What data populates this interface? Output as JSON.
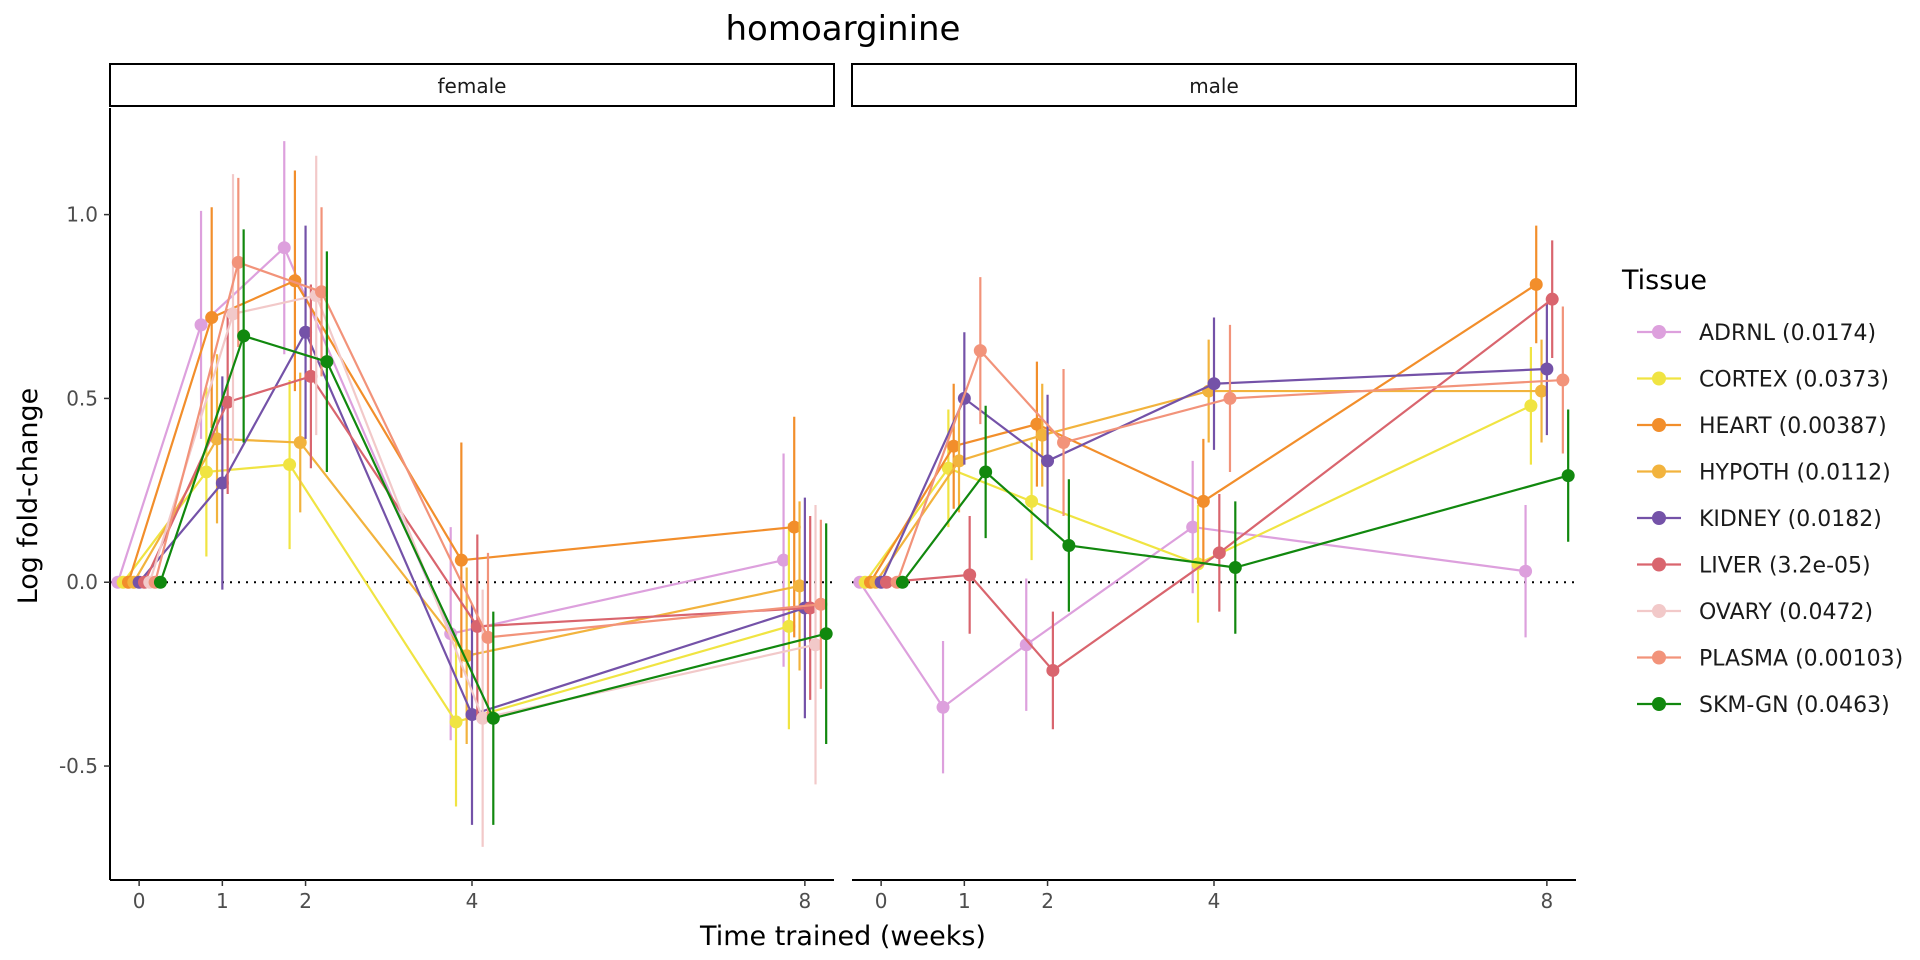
{
  "chart_data": {
    "type": "line",
    "title": "homoarginine",
    "xlabel": "Time trained (weeks)",
    "ylabel": "Log fold-change",
    "x_ticks": [
      0,
      1,
      2,
      4,
      8
    ],
    "y_ticks": [
      -0.5,
      0.0,
      0.5,
      1.0
    ],
    "y_tick_labels": [
      "-0.5",
      "0.0",
      "0.5",
      "1.0"
    ],
    "ylim": [
      -0.81,
      1.29
    ],
    "xlim": [
      -0.35,
      8.35
    ],
    "reference_line": 0,
    "legend_title": "Tissue",
    "legend_position": "right",
    "panels": [
      "female",
      "male"
    ],
    "series": [
      {
        "name": "ADRNL (0.0174)",
        "color": "#DDA0DD",
        "female": {
          "x": [
            0,
            1,
            2,
            4,
            8
          ],
          "y": [
            0,
            0.7,
            0.91,
            -0.14,
            0.06
          ],
          "lo": [
            0,
            0.39,
            0.62,
            -0.43,
            -0.23
          ],
          "hi": [
            0,
            1.01,
            1.2,
            0.15,
            0.35
          ]
        },
        "male": {
          "x": [
            0,
            1,
            2,
            4,
            8
          ],
          "y": [
            0,
            -0.34,
            -0.17,
            0.15,
            0.03
          ],
          "lo": [
            0,
            -0.52,
            -0.35,
            -0.03,
            -0.15
          ],
          "hi": [
            0,
            -0.16,
            0.01,
            0.33,
            0.21
          ]
        }
      },
      {
        "name": "CORTEX (0.0373)",
        "color": "#F0E442",
        "female": {
          "x": [
            0,
            1,
            2,
            4,
            8
          ],
          "y": [
            0,
            0.3,
            0.32,
            -0.38,
            -0.12
          ],
          "lo": [
            0,
            0.07,
            0.09,
            -0.61,
            -0.4
          ],
          "hi": [
            0,
            0.53,
            0.55,
            -0.15,
            0.16
          ]
        },
        "male": {
          "x": [
            0,
            1,
            2,
            4,
            8
          ],
          "y": [
            0,
            0.31,
            0.22,
            0.05,
            0.48
          ],
          "lo": [
            0,
            0.15,
            0.06,
            -0.11,
            0.32
          ],
          "hi": [
            0,
            0.47,
            0.38,
            0.21,
            0.64
          ]
        }
      },
      {
        "name": "HEART (0.00387)",
        "color": "#F28E2B",
        "female": {
          "x": [
            0,
            1,
            2,
            4,
            8
          ],
          "y": [
            0,
            0.72,
            0.82,
            0.06,
            0.15
          ],
          "lo": [
            0,
            0.42,
            0.52,
            -0.26,
            -0.15
          ],
          "hi": [
            0,
            1.02,
            1.12,
            0.38,
            0.45
          ]
        },
        "male": {
          "x": [
            0,
            1,
            2,
            4,
            8
          ],
          "y": [
            0,
            0.37,
            0.43,
            0.22,
            0.81
          ],
          "lo": [
            0,
            0.2,
            0.26,
            0.05,
            0.65
          ],
          "hi": [
            0,
            0.54,
            0.6,
            0.39,
            0.97
          ]
        }
      },
      {
        "name": "HYPOTH (0.0112)",
        "color": "#F2B33D",
        "female": {
          "x": [
            0,
            1,
            2,
            4,
            8
          ],
          "y": [
            0,
            0.39,
            0.38,
            -0.2,
            -0.01
          ],
          "lo": [
            0,
            0.16,
            0.19,
            -0.44,
            -0.24
          ],
          "hi": [
            0,
            0.62,
            0.57,
            0.04,
            0.22
          ]
        },
        "male": {
          "x": [
            0,
            1,
            2,
            4,
            8
          ],
          "y": [
            0,
            0.33,
            0.4,
            0.52,
            0.52
          ],
          "lo": [
            0,
            0.19,
            0.26,
            0.38,
            0.38
          ],
          "hi": [
            0,
            0.47,
            0.54,
            0.66,
            0.66
          ]
        }
      },
      {
        "name": "KIDNEY (0.0182)",
        "color": "#7452A8",
        "female": {
          "x": [
            0,
            1,
            2,
            4,
            8
          ],
          "y": [
            0,
            0.27,
            0.68,
            -0.36,
            -0.07
          ],
          "lo": [
            0,
            -0.02,
            0.39,
            -0.66,
            -0.37
          ],
          "hi": [
            0,
            0.56,
            0.97,
            -0.06,
            0.23
          ]
        },
        "male": {
          "x": [
            0,
            1,
            2,
            4,
            8
          ],
          "y": [
            0,
            0.5,
            0.33,
            0.54,
            0.58
          ],
          "lo": [
            0,
            0.32,
            0.15,
            0.36,
            0.4
          ],
          "hi": [
            0,
            0.68,
            0.51,
            0.72,
            0.76
          ]
        }
      },
      {
        "name": "LIVER (3.2e-05)",
        "color": "#D9656E",
        "female": {
          "x": [
            0,
            1,
            2,
            4,
            8
          ],
          "y": [
            0,
            0.49,
            0.56,
            -0.12,
            -0.07
          ],
          "lo": [
            0,
            0.24,
            0.31,
            -0.37,
            -0.32
          ],
          "hi": [
            0,
            0.74,
            0.81,
            0.13,
            0.18
          ]
        },
        "male": {
          "x": [
            0,
            1,
            2,
            4,
            8
          ],
          "y": [
            0,
            0.02,
            -0.24,
            0.08,
            0.77
          ],
          "lo": [
            0,
            -0.14,
            -0.4,
            -0.08,
            0.61
          ],
          "hi": [
            0,
            0.18,
            -0.08,
            0.24,
            0.93
          ]
        }
      },
      {
        "name": "OVARY (0.0472)",
        "color": "#F2C9C9",
        "female": {
          "x": [
            0,
            1,
            2,
            4,
            8
          ],
          "y": [
            0,
            0.73,
            0.78,
            -0.37,
            -0.17
          ],
          "lo": [
            0,
            0.35,
            0.4,
            -0.72,
            -0.55
          ],
          "hi": [
            0,
            1.11,
            1.16,
            -0.02,
            0.21
          ]
        },
        "male": {
          "x": [],
          "y": [],
          "lo": [],
          "hi": []
        }
      },
      {
        "name": "PLASMA (0.00103)",
        "color": "#F2937A",
        "female": {
          "x": [
            0,
            1,
            2,
            4,
            8
          ],
          "y": [
            0,
            0.87,
            0.79,
            -0.15,
            -0.06
          ],
          "lo": [
            0,
            0.64,
            0.56,
            -0.38,
            -0.29
          ],
          "hi": [
            0,
            1.1,
            1.02,
            0.08,
            0.17
          ]
        },
        "male": {
          "x": [
            0,
            1,
            2,
            4,
            8
          ],
          "y": [
            0,
            0.63,
            0.38,
            0.5,
            0.55
          ],
          "lo": [
            0,
            0.43,
            0.18,
            0.3,
            0.35
          ],
          "hi": [
            0,
            0.83,
            0.58,
            0.7,
            0.75
          ]
        }
      },
      {
        "name": "SKM-GN (0.0463)",
        "color": "#11880E",
        "female": {
          "x": [
            0,
            1,
            2,
            4,
            8
          ],
          "y": [
            0,
            0.67,
            0.6,
            -0.37,
            -0.14
          ],
          "lo": [
            0,
            0.38,
            0.3,
            -0.66,
            -0.44
          ],
          "hi": [
            0,
            0.96,
            0.9,
            -0.08,
            0.16
          ]
        },
        "male": {
          "x": [
            0,
            1,
            2,
            4,
            8
          ],
          "y": [
            0,
            0.3,
            0.1,
            0.04,
            0.29
          ],
          "lo": [
            0,
            0.12,
            -0.08,
            -0.14,
            0.11
          ],
          "hi": [
            0,
            0.48,
            0.28,
            0.22,
            0.47
          ]
        }
      }
    ]
  }
}
